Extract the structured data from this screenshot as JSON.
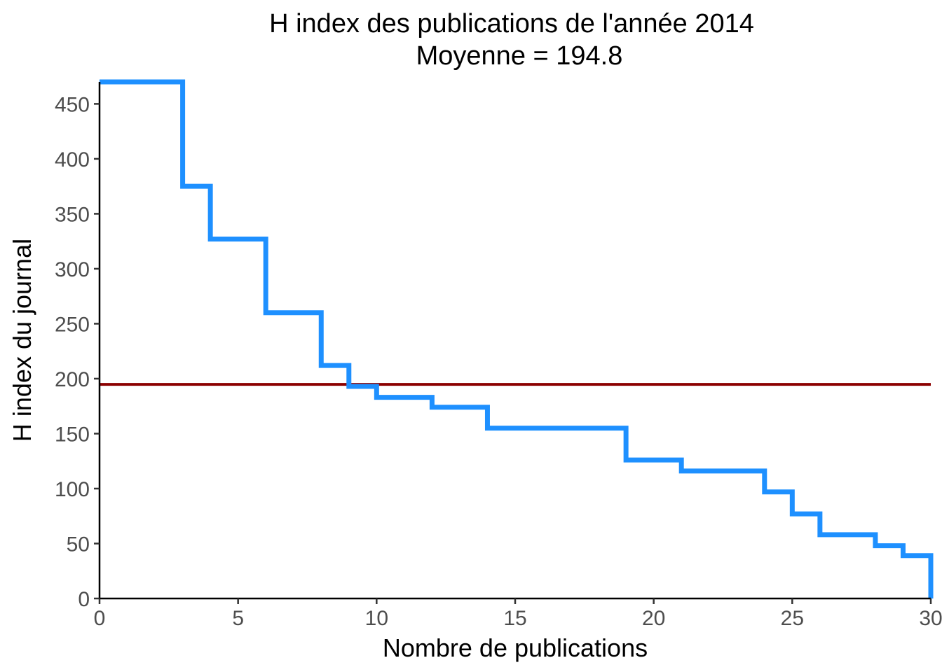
{
  "chart_data": {
    "type": "line",
    "style": "step",
    "title": "H index des publications de l'année 2014",
    "subtitle": "Moyenne = 194.8",
    "xlabel": "Nombre de publications",
    "ylabel": "H index du journal",
    "xlim": [
      0,
      30
    ],
    "ylim": [
      0,
      470
    ],
    "x_ticks": [
      0,
      5,
      10,
      15,
      20,
      25,
      30
    ],
    "y_ticks": [
      0,
      50,
      100,
      150,
      200,
      250,
      300,
      350,
      400,
      450
    ],
    "grid": false,
    "series": [
      {
        "color": "#1E90FF",
        "points": [
          {
            "x": 0,
            "y": 470
          },
          {
            "x": 3,
            "y": 375
          },
          {
            "x": 4,
            "y": 327
          },
          {
            "x": 6,
            "y": 260
          },
          {
            "x": 8,
            "y": 212
          },
          {
            "x": 9,
            "y": 193
          },
          {
            "x": 10,
            "y": 183
          },
          {
            "x": 12,
            "y": 174
          },
          {
            "x": 14,
            "y": 155
          },
          {
            "x": 19,
            "y": 126
          },
          {
            "x": 21,
            "y": 116
          },
          {
            "x": 24,
            "y": 97
          },
          {
            "x": 25,
            "y": 77
          },
          {
            "x": 26,
            "y": 58
          },
          {
            "x": 28,
            "y": 48
          },
          {
            "x": 29,
            "y": 39
          },
          {
            "x": 30,
            "y": 0
          }
        ]
      }
    ],
    "mean_line": {
      "y": 194.8,
      "color": "#8B0000"
    }
  }
}
